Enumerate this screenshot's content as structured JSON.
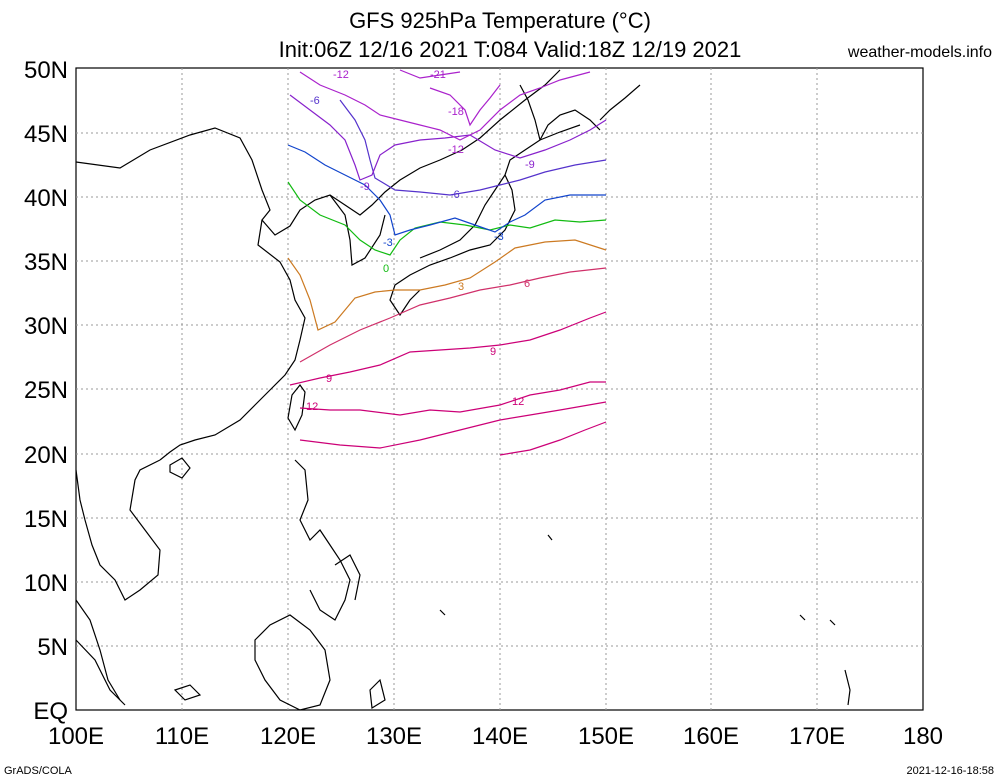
{
  "title": {
    "line1": "GFS 925hPa Temperature (°C)",
    "line2": "Init:06Z 12/16 2021 T:084 Valid:18Z 12/19 2021"
  },
  "site": "weather-models.info",
  "footer": {
    "left": "GrADS/COLA",
    "right": "2021-12-16-18:58"
  },
  "axes": {
    "lat_labels": [
      "EQ",
      "5N",
      "10N",
      "15N",
      "20N",
      "25N",
      "30N",
      "35N",
      "40N",
      "45N",
      "50N"
    ],
    "lon_labels": [
      "100E",
      "110E",
      "120E",
      "130E",
      "140E",
      "150E",
      "160E",
      "170E",
      "180"
    ]
  },
  "contours": {
    "isotherms": [
      {
        "value": "12",
        "color": "#cc0077"
      },
      {
        "value": "9",
        "color": "#cc0077"
      },
      {
        "value": "6",
        "color": "#d0306a"
      },
      {
        "value": "3",
        "color": "#cc7a22"
      },
      {
        "value": "0",
        "color": "#11bb11"
      },
      {
        "value": "-3",
        "color": "#1144cc"
      },
      {
        "value": "-6",
        "color": "#5533cc"
      },
      {
        "value": "-9",
        "color": "#8822cc"
      },
      {
        "value": "-12",
        "color": "#aa22cc"
      },
      {
        "value": "-18",
        "color": "#aa22cc"
      },
      {
        "value": "-21",
        "color": "#aa22cc"
      }
    ]
  },
  "colors": {
    "background": "#ffffff",
    "coastline": "#000000",
    "grid": "#999999"
  }
}
